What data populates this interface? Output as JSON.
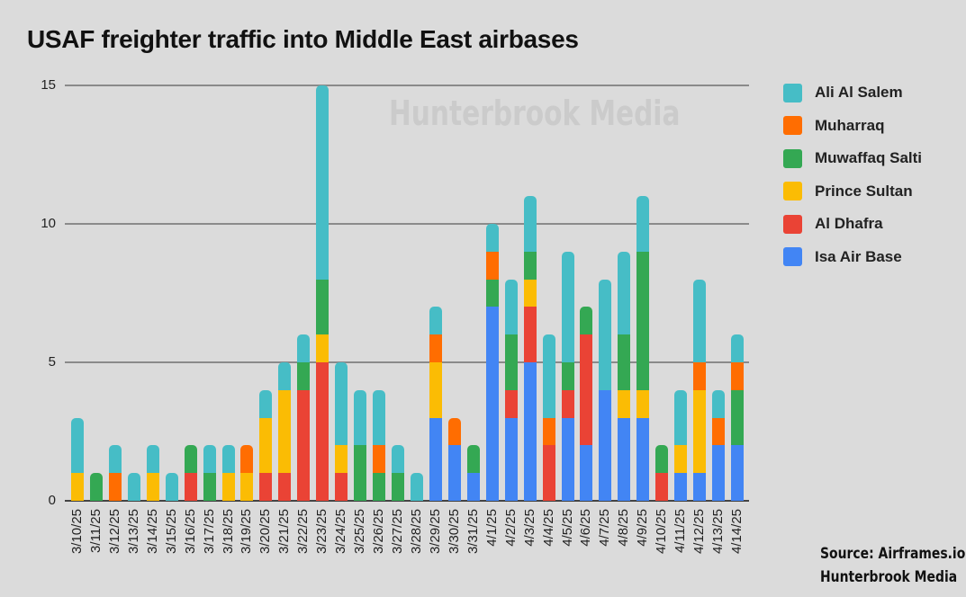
{
  "title": "USAF freighter traffic into Middle East airbases",
  "watermark": "Hunterbrook Media",
  "source": {
    "line1": "Source: Airframes.io,",
    "line2": "Hunterbrook Media"
  },
  "legend": [
    {
      "label": "Ali Al Salem",
      "color": "#46bdc6"
    },
    {
      "label": "Muharraq",
      "color": "#ff6d01"
    },
    {
      "label": "Muwaffaq Salti",
      "color": "#34a853"
    },
    {
      "label": "Prince Sultan",
      "color": "#fbbc04"
    },
    {
      "label": "Al Dhafra",
      "color": "#ea4335"
    },
    {
      "label": "Isa Air Base",
      "color": "#4285f4"
    }
  ],
  "yticks": [
    "0",
    "5",
    "10",
    "15"
  ],
  "chart_data": {
    "type": "bar",
    "stacked": true,
    "title": "USAF freighter traffic into Middle East airbases",
    "xlabel": "",
    "ylabel": "",
    "ylim": [
      0,
      15
    ],
    "yticks": [
      0,
      5,
      10,
      15
    ],
    "grid": true,
    "legend_position": "right",
    "categories": [
      "3/10/25",
      "3/11/25",
      "3/12/25",
      "3/13/25",
      "3/14/25",
      "3/15/25",
      "3/16/25",
      "3/17/25",
      "3/18/25",
      "3/19/25",
      "3/20/25",
      "3/21/25",
      "3/22/25",
      "3/23/25",
      "3/24/25",
      "3/25/25",
      "3/26/25",
      "3/27/25",
      "3/28/25",
      "3/29/25",
      "3/30/25",
      "3/31/25",
      "4/1/25",
      "4/2/25",
      "4/3/25",
      "4/4/25",
      "4/5/25",
      "4/6/25",
      "4/7/25",
      "4/8/25",
      "4/9/25",
      "4/10/25",
      "4/11/25",
      "4/12/25",
      "4/13/25",
      "4/14/25"
    ],
    "series": [
      {
        "name": "Isa Air Base",
        "color": "#4285f4",
        "values": [
          0,
          0,
          0,
          0,
          0,
          0,
          0,
          0,
          0,
          0,
          0,
          0,
          0,
          0,
          0,
          0,
          0,
          0,
          0,
          3,
          2,
          1,
          7,
          3,
          5,
          0,
          3,
          2,
          4,
          3,
          3,
          0,
          1,
          1,
          2,
          2
        ]
      },
      {
        "name": "Al Dhafra",
        "color": "#ea4335",
        "values": [
          0,
          0,
          0,
          0,
          0,
          0,
          1,
          0,
          0,
          0,
          1,
          1,
          4,
          5,
          1,
          0,
          0,
          0,
          0,
          0,
          0,
          0,
          0,
          1,
          2,
          2,
          1,
          4,
          0,
          0,
          0,
          1,
          0,
          0,
          0,
          0
        ]
      },
      {
        "name": "Prince Sultan",
        "color": "#fbbc04",
        "values": [
          1,
          0,
          0,
          0,
          1,
          0,
          0,
          0,
          1,
          1,
          2,
          3,
          0,
          1,
          1,
          0,
          0,
          0,
          0,
          2,
          0,
          0,
          0,
          0,
          1,
          0,
          0,
          0,
          0,
          1,
          1,
          0,
          1,
          3,
          0,
          0
        ]
      },
      {
        "name": "Muwaffaq Salti",
        "color": "#34a853",
        "values": [
          0,
          1,
          0,
          0,
          0,
          0,
          1,
          1,
          0,
          0,
          0,
          0,
          1,
          2,
          0,
          2,
          1,
          1,
          0,
          0,
          0,
          1,
          1,
          2,
          1,
          0,
          1,
          1,
          0,
          2,
          5,
          1,
          0,
          0,
          0,
          2
        ]
      },
      {
        "name": "Muharraq",
        "color": "#ff6d01",
        "values": [
          0,
          0,
          1,
          0,
          0,
          0,
          0,
          0,
          0,
          1,
          0,
          0,
          0,
          0,
          0,
          0,
          1,
          0,
          0,
          1,
          1,
          0,
          1,
          0,
          0,
          1,
          0,
          0,
          0,
          0,
          0,
          0,
          0,
          1,
          1,
          1
        ]
      },
      {
        "name": "Ali Al Salem",
        "color": "#46bdc6",
        "values": [
          2,
          0,
          1,
          1,
          1,
          1,
          0,
          1,
          1,
          0,
          1,
          1,
          1,
          7,
          3,
          2,
          2,
          1,
          1,
          1,
          0,
          0,
          1,
          2,
          2,
          3,
          4,
          0,
          4,
          3,
          2,
          0,
          2,
          3,
          1,
          1
        ]
      }
    ]
  }
}
